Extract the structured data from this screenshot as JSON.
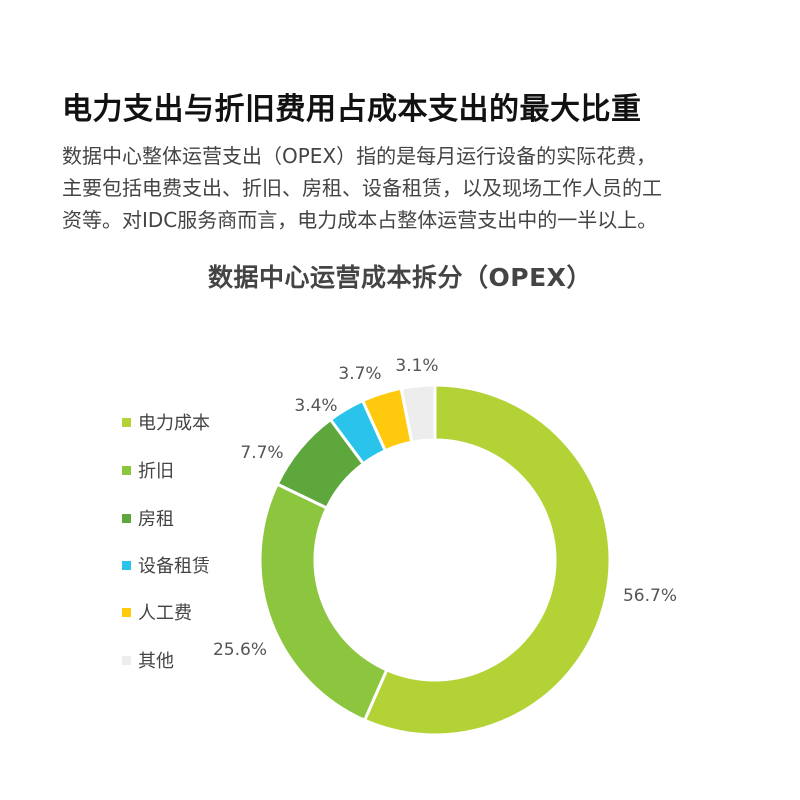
{
  "headline": "电力支出与折旧费用占成本支出的最大比重",
  "body_lines": [
    "数据中心整体运营支出（OPEX）指的是每月运行设备的实际花费，",
    "主要包括电费支出、折旧、房租、设备租赁，以及现场工作人员的工",
    "资等。对IDC服务商而言，电力成本占整体运营支出中的一半以上。"
  ],
  "chart_data": {
    "type": "pie",
    "title": "数据中心运营成本拆分（OPEX）",
    "donut": true,
    "legend_position": "left",
    "categories": [
      "电力成本",
      "折旧",
      "房租",
      "设备租赁",
      "人工费",
      "其他"
    ],
    "values": [
      56.7,
      25.6,
      7.7,
      3.4,
      3.7,
      3.1
    ],
    "data_labels": [
      "56.7%",
      "25.6%",
      "7.7%",
      "3.4%",
      "3.7%",
      "3.1%"
    ],
    "colors": [
      "#b2d235",
      "#8cc63f",
      "#5ea73d",
      "#29c3ec",
      "#ffc90e",
      "#ededed"
    ]
  }
}
